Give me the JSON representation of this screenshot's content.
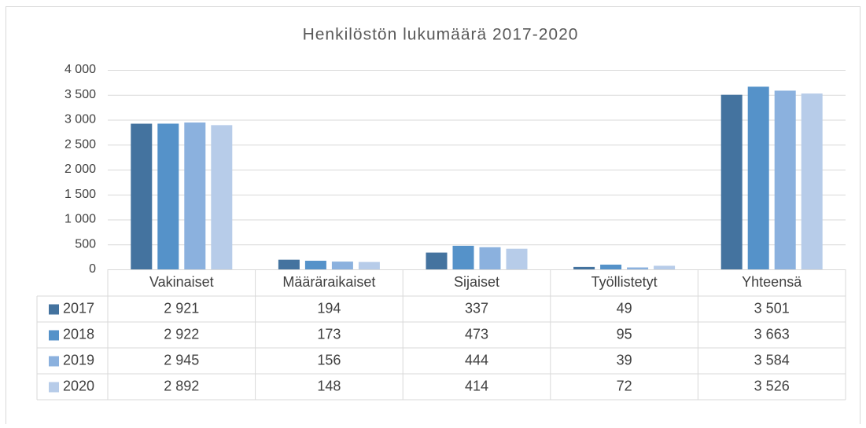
{
  "chart_data": {
    "type": "bar",
    "title": "Henkilöstön lukumäärä 2017-2020",
    "categories": [
      "Vakinaiset",
      "Määräraikaiset",
      "Sijaiset",
      "Työllistetyt",
      "Yhteensä"
    ],
    "series": [
      {
        "name": "2017",
        "color": "#44739f",
        "values": [
          2921,
          194,
          337,
          49,
          3501
        ],
        "value_labels": [
          "2 921",
          "194",
          "337",
          "49",
          "3 501"
        ]
      },
      {
        "name": "2018",
        "color": "#5592c9",
        "values": [
          2922,
          173,
          473,
          95,
          3663
        ],
        "value_labels": [
          "2 922",
          "173",
          "473",
          "95",
          "3 663"
        ]
      },
      {
        "name": "2019",
        "color": "#8bb1de",
        "values": [
          2945,
          156,
          444,
          39,
          3584
        ],
        "value_labels": [
          "2 945",
          "156",
          "444",
          "39",
          "3 584"
        ]
      },
      {
        "name": "2020",
        "color": "#b7cce9",
        "values": [
          2892,
          148,
          414,
          72,
          3526
        ],
        "value_labels": [
          "2 892",
          "148",
          "414",
          "72",
          "3 526"
        ]
      }
    ],
    "ylim": [
      0,
      4000
    ],
    "yticks": [
      0,
      500,
      {
        "value": 1000,
        "label": "1 000"
      },
      {
        "value": 1500,
        "label": "1 500"
      },
      {
        "value": 2000,
        "label": "2 000"
      },
      {
        "value": 2500,
        "label": "2 500"
      },
      {
        "value": 3000,
        "label": "3 000"
      },
      {
        "value": 3500,
        "label": "3 500"
      },
      {
        "value": 4000,
        "label": "4 000"
      }
    ],
    "grid": true
  }
}
